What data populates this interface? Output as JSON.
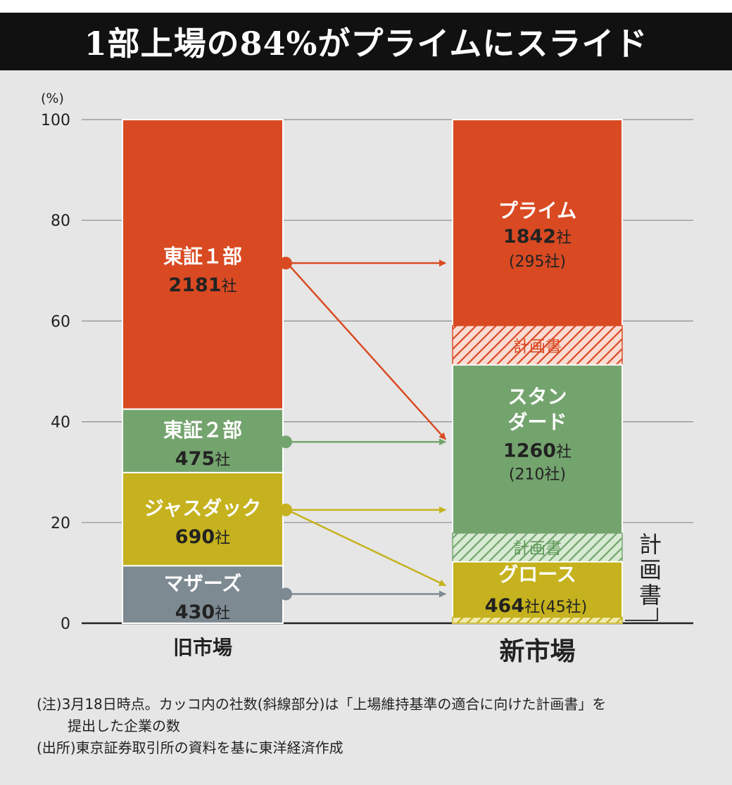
{
  "title": "1部上場の84%がプライムにスライド",
  "chart_data": {
    "type": "bar",
    "yunit": "(%)",
    "ylim": [
      0,
      100
    ],
    "yticks": [
      0,
      20,
      40,
      60,
      80,
      100
    ],
    "grid": true,
    "categories": [
      "旧市場",
      "新市場"
    ],
    "old_market": [
      {
        "name": "東証１部",
        "count_num": "2181",
        "count_unit": "社",
        "bottom": 42.5,
        "top": 100,
        "color": "#d94a22"
      },
      {
        "name": "東証２部",
        "count_num": "475",
        "count_unit": "社",
        "bottom": 29.9,
        "top": 42.5,
        "color": "#74a46e"
      },
      {
        "name": "ジャスダック",
        "count_num": "690",
        "count_unit": "社",
        "bottom": 11.4,
        "top": 29.9,
        "color": "#c5b21e"
      },
      {
        "name": "マザーズ",
        "count_num": "430",
        "count_unit": "社",
        "bottom": 0,
        "top": 11.4,
        "color": "#7e8a92"
      }
    ],
    "new_market": [
      {
        "name": "プライム",
        "count_num": "1842",
        "count_unit": "社",
        "plan_count": "(295社)",
        "bottom": 51.3,
        "top": 100,
        "plan_bottom": 51.3,
        "plan_top": 59.1,
        "color": "#d94a22",
        "hatch_bg": "#fbdcd4",
        "plan_label": "計画書"
      },
      {
        "name_lines": [
          "スタン",
          "ダード"
        ],
        "count_num": "1260",
        "count_unit": "社",
        "plan_count": "(210社)",
        "bottom": 12.2,
        "top": 51.3,
        "plan_bottom": 12.2,
        "plan_top": 17.9,
        "color": "#74a46e",
        "hatch_bg": "#d7ead2",
        "plan_label": "計画書"
      },
      {
        "name": "グロース",
        "count_num": "464",
        "count_unit": "社",
        "plan_count": "(45社)",
        "bottom": 0,
        "top": 12.2,
        "plan_bottom": 0,
        "plan_top": 1.2,
        "color": "#c5b21e",
        "hatch_bg": "#f1eab0"
      }
    ],
    "growth_plan_label": "計画書",
    "flows": [
      {
        "from": "東証１部",
        "to": "プライム",
        "from_value": 71.5,
        "to_value": 71.5,
        "color": "#d94a22"
      },
      {
        "from": "東証１部",
        "to": "スタンダード",
        "from_value": 71.5,
        "to_value": 36.5,
        "color": "#d94a22"
      },
      {
        "from": "東証２部",
        "to": "スタンダード",
        "from_value": 36.0,
        "to_value": 36.0,
        "color": "#74a46e"
      },
      {
        "from": "ジャスダック",
        "to": "スタンダード",
        "from_value": 22.5,
        "to_value": 22.5,
        "color": "#c5b21e"
      },
      {
        "from": "ジャスダック",
        "to": "グロース",
        "from_value": 22.5,
        "to_value": 7.5,
        "color": "#c5b21e"
      },
      {
        "from": "マザーズ",
        "to": "グロース",
        "from_value": 5.8,
        "to_value": 5.8,
        "color": "#7e8a92"
      }
    ]
  },
  "notes": {
    "line1": "(注)3月18日時点。カッコ内の社数(斜線部分)は「上場維持基準の適合に向けた計画書」を",
    "line2": "提出した企業の数",
    "line3": "(出所)東京証券取引所の資料を基に東洋経済作成"
  }
}
